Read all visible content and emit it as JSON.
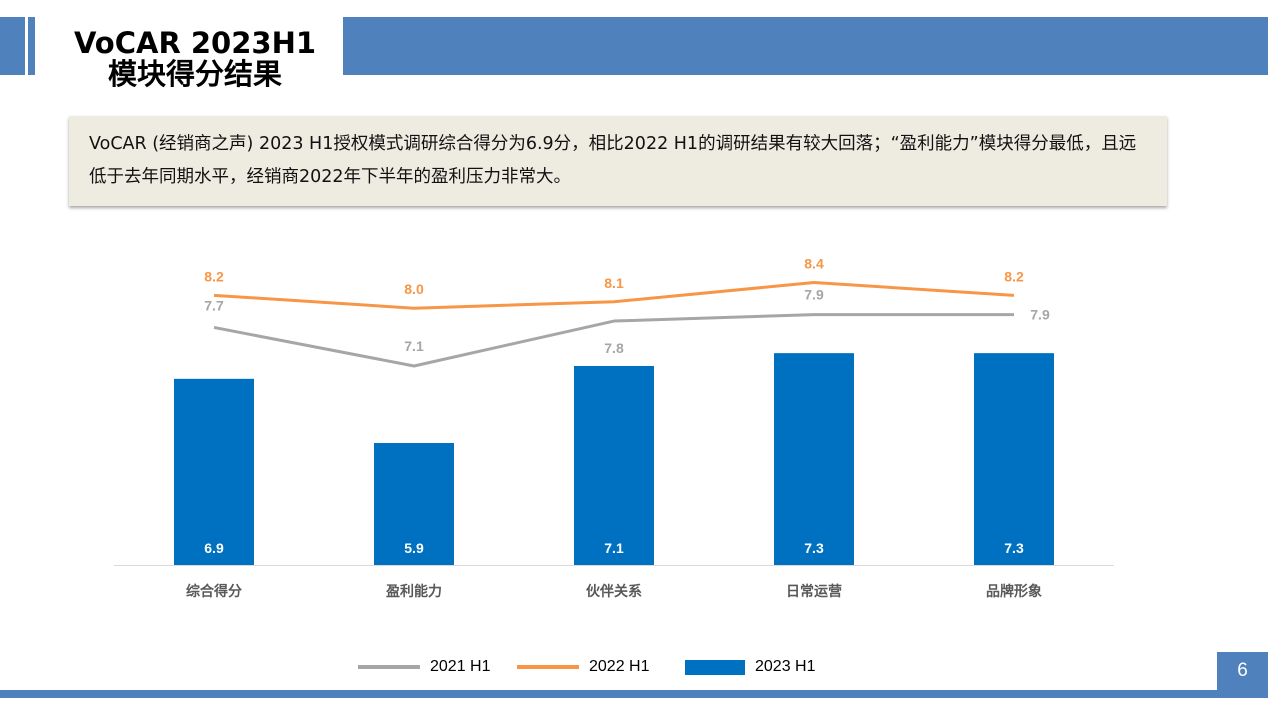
{
  "header": {
    "title_line1": "VoCAR 2023H1",
    "title_line2": "模块得分结果"
  },
  "summary": "VoCAR (经销商之声) 2023 H1授权模式调研综合得分为6.9分，相比2022 H1的调研结果有较大回落；“盈利能力”模块得分最低，且远低于去年同期水平，经销商2022年下半年的盈利压力非常大。",
  "page_number": "6",
  "colors": {
    "accent": "#4f81bd",
    "bar": "#0070c0",
    "line2021": "#a6a6a6",
    "line2022": "#f79646"
  },
  "chart_data": {
    "type": "bar+line",
    "categories": [
      "综合得分",
      "盈利能力",
      "伙伴关系",
      "日常运营",
      "品牌形象"
    ],
    "series": [
      {
        "name": "2021 H1",
        "type": "line",
        "color": "#a6a6a6",
        "values": [
          7.7,
          7.1,
          7.8,
          7.9,
          7.9
        ]
      },
      {
        "name": "2022 H1",
        "type": "line",
        "color": "#f79646",
        "values": [
          8.2,
          8.0,
          8.1,
          8.4,
          8.2
        ]
      },
      {
        "name": "2023 H1",
        "type": "bar",
        "color": "#0070c0",
        "values": [
          6.9,
          5.9,
          7.1,
          7.3,
          7.3
        ]
      }
    ],
    "ylim": [
      4,
      9
    ],
    "grid": false,
    "legend": "bottom"
  }
}
